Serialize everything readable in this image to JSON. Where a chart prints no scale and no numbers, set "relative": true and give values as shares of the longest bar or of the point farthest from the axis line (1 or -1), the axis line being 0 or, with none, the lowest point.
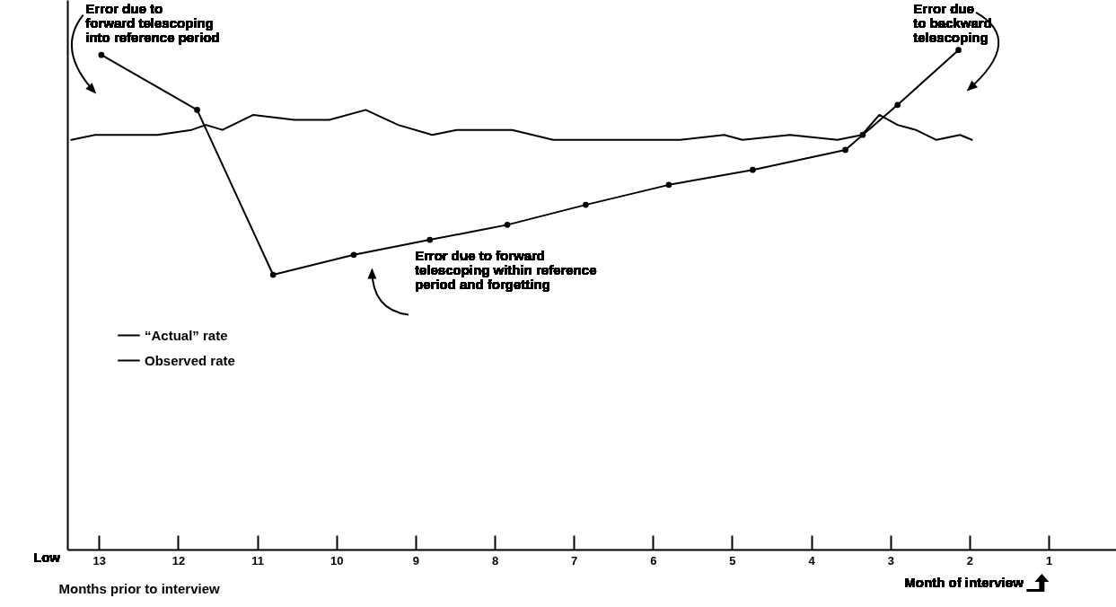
{
  "chart_data": {
    "type": "line",
    "relative": true,
    "xlabel": "Months prior to interview",
    "xlim": [
      13.4,
      0.15
    ],
    "xticks": [
      13,
      12,
      11,
      10,
      9,
      8,
      7,
      6,
      5,
      4,
      3,
      2,
      1
    ],
    "legend": "left",
    "grid": false,
    "annotations": [
      "Error due to\nforward telescoping\ninto reference period",
      "Error due\nto backward\ntelescoping",
      "Error due to forward\ntelescoping within reference\nperiod and forgetting",
      "Low",
      "Month of interview"
    ],
    "series": [
      {
        "name": "“Actual” rate",
        "color": "#000000",
        "marker": "none",
        "x": [
          13.35,
          13.05,
          12.69,
          12.26,
          11.83,
          11.65,
          11.44,
          11.05,
          10.53,
          10.09,
          9.63,
          9.22,
          8.79,
          8.48,
          7.78,
          7.26,
          6.76,
          6.23,
          5.66,
          5.1,
          4.87,
          4.27,
          3.67,
          3.36,
          3.14,
          2.91,
          2.68,
          2.42,
          2.12,
          1.97
        ],
        "values": [
          0.82,
          0.83,
          0.83,
          0.83,
          0.84,
          0.85,
          0.84,
          0.87,
          0.86,
          0.86,
          0.88,
          0.85,
          0.83,
          0.84,
          0.84,
          0.82,
          0.82,
          0.82,
          0.82,
          0.83,
          0.82,
          0.83,
          0.82,
          0.83,
          0.87,
          0.85,
          0.84,
          0.82,
          0.83,
          0.82
        ]
      },
      {
        "name": "Observed rate",
        "color": "#000000",
        "marker": "circle",
        "x": [
          12.97,
          11.76,
          10.8,
          9.78,
          8.82,
          7.84,
          6.85,
          5.8,
          4.74,
          3.57,
          3.35,
          2.91,
          2.14
        ],
        "values": [
          0.99,
          0.88,
          0.55,
          0.59,
          0.62,
          0.65,
          0.69,
          0.73,
          0.76,
          0.8,
          0.83,
          0.89,
          1.0
        ]
      }
    ]
  }
}
